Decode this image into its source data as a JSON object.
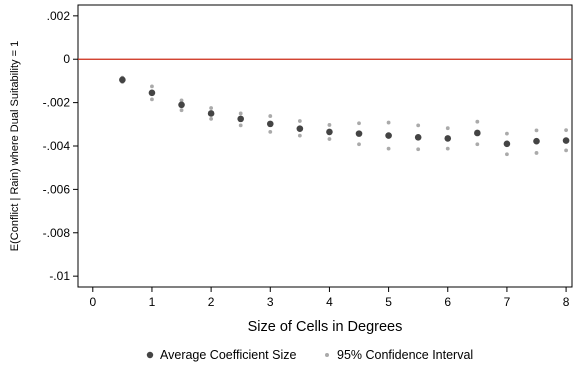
{
  "chart_data": {
    "type": "scatter",
    "xlabel": "Size of Cells in Degrees",
    "ylabel": "E(Conflict | Rain) where Dual Suitability = 1",
    "xlim": [
      -0.25,
      8.1
    ],
    "ylim": [
      -0.0105,
      0.0025
    ],
    "x_ticks": [
      0,
      1,
      2,
      3,
      4,
      5,
      6,
      7,
      8
    ],
    "x_tick_labels": [
      "0",
      "1",
      "2",
      "3",
      "4",
      "5",
      "6",
      "7",
      "8"
    ],
    "y_ticks": [
      0.002,
      0,
      -0.002,
      -0.004,
      -0.006,
      -0.008,
      -0.01
    ],
    "y_tick_labels": [
      ".002",
      "0",
      "-.002",
      "-.004",
      "-.006",
      "-.008",
      "-.01"
    ],
    "reference_line": {
      "y": 0,
      "color": "#cc2a14"
    },
    "grid": false,
    "legend_position": "bottom",
    "series": [
      {
        "name": "Average Coefficient Size",
        "color": "#444444",
        "x": [
          0.5,
          1,
          1.5,
          2,
          2.5,
          3,
          3.5,
          4,
          4.5,
          5,
          5.5,
          6,
          6.5,
          7,
          7.5,
          8
        ],
        "y": [
          -0.00095,
          -0.00155,
          -0.0021,
          -0.0025,
          -0.00275,
          -0.00298,
          -0.0032,
          -0.00335,
          -0.00343,
          -0.00352,
          -0.0036,
          -0.00365,
          -0.0034,
          -0.0039,
          -0.00378,
          -0.00375
        ]
      },
      {
        "name": "95% Confidence Interval",
        "color": "#aaaaaa",
        "x": [
          0.5,
          1,
          1.5,
          2,
          2.5,
          3,
          3.5,
          4,
          4.5,
          5,
          5.5,
          6,
          6.5,
          7,
          7.5,
          8
        ],
        "upper": [
          -0.00085,
          -0.00125,
          -0.0019,
          -0.00225,
          -0.0025,
          -0.00262,
          -0.00285,
          -0.00303,
          -0.00295,
          -0.00292,
          -0.00305,
          -0.00318,
          -0.00288,
          -0.00343,
          -0.00328,
          -0.00327
        ],
        "lower": [
          -0.00105,
          -0.00185,
          -0.00235,
          -0.00275,
          -0.00305,
          -0.00335,
          -0.00352,
          -0.00368,
          -0.00392,
          -0.00412,
          -0.00415,
          -0.00412,
          -0.00392,
          -0.00438,
          -0.00432,
          -0.0042
        ]
      }
    ]
  }
}
